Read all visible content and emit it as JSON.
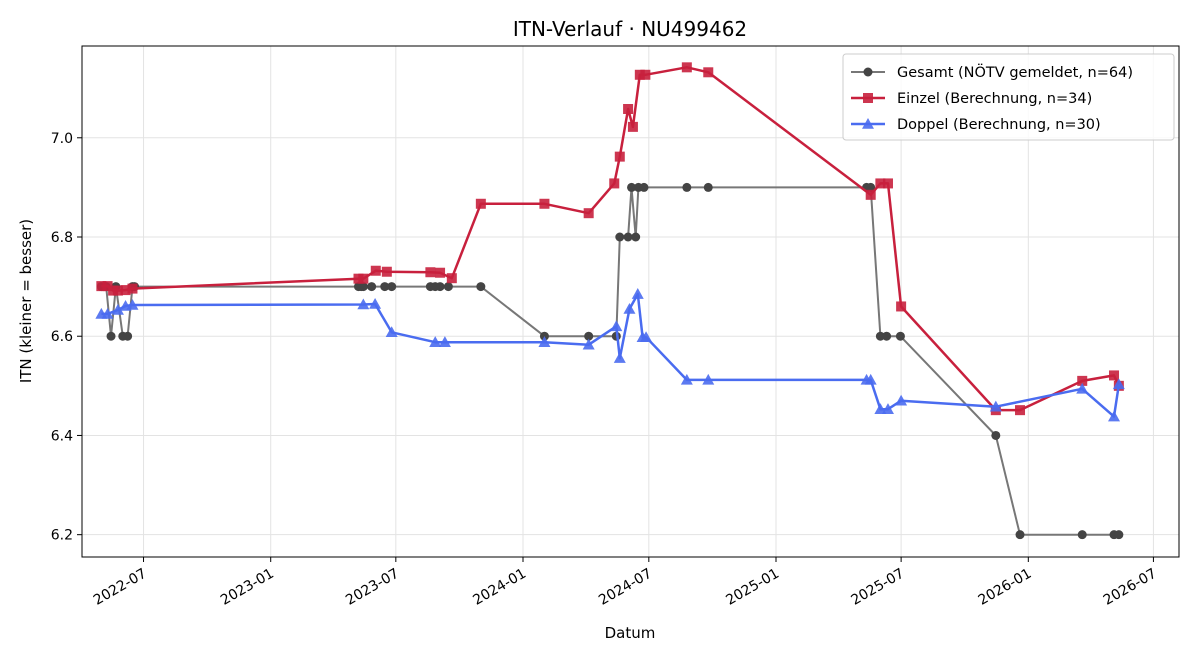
{
  "chart_data": {
    "type": "line",
    "title": "ITN-Verlauf · NU499462",
    "xlabel": "Datum",
    "ylabel": "ITN  (kleiner = besser)",
    "x_ticks": [
      "2022-07",
      "2023-01",
      "2023-07",
      "2024-01",
      "2024-07",
      "2025-01",
      "2025-07",
      "2026-01",
      "2026-07"
    ],
    "y_ticks": [
      6.2,
      6.4,
      6.6,
      6.8,
      7.0
    ],
    "xlim": [
      "2022-04-03",
      "2026-08-07"
    ],
    "ylim": [
      6.155,
      7.185
    ],
    "grid": true,
    "legend_position": "top-right",
    "series": [
      {
        "name": "Gesamt (NÖTV gemeldet, n=64)",
        "color": "#595959",
        "marker": "circle",
        "points": [
          [
            "2022-05-01",
            6.7
          ],
          [
            "2022-05-08",
            6.7
          ],
          [
            "2022-05-15",
            6.6
          ],
          [
            "2022-05-22",
            6.7
          ],
          [
            "2022-06-01",
            6.6
          ],
          [
            "2022-06-08",
            6.6
          ],
          [
            "2022-06-15",
            6.7
          ],
          [
            "2022-06-18",
            6.7
          ],
          [
            "2023-05-08",
            6.7
          ],
          [
            "2023-05-12",
            6.7
          ],
          [
            "2023-05-15",
            6.7
          ],
          [
            "2023-05-27",
            6.7
          ],
          [
            "2023-06-15",
            6.7
          ],
          [
            "2023-06-25",
            6.7
          ],
          [
            "2023-08-20",
            6.7
          ],
          [
            "2023-08-27",
            6.7
          ],
          [
            "2023-09-03",
            6.7
          ],
          [
            "2023-09-15",
            6.7
          ],
          [
            "2023-11-01",
            6.7
          ],
          [
            "2024-02-01",
            6.6
          ],
          [
            "2024-04-05",
            6.6
          ],
          [
            "2024-05-15",
            6.6
          ],
          [
            "2024-05-20",
            6.8
          ],
          [
            "2024-06-01",
            6.8
          ],
          [
            "2024-06-06",
            6.9
          ],
          [
            "2024-06-12",
            6.8
          ],
          [
            "2024-06-16",
            6.9
          ],
          [
            "2024-06-24",
            6.9
          ],
          [
            "2024-08-25",
            6.9
          ],
          [
            "2024-09-25",
            6.9
          ],
          [
            "2025-05-12",
            6.9
          ],
          [
            "2025-05-18",
            6.9
          ],
          [
            "2025-06-01",
            6.6
          ],
          [
            "2025-06-10",
            6.6
          ],
          [
            "2025-06-30",
            6.6
          ],
          [
            "2025-11-15",
            6.4
          ],
          [
            "2025-12-20",
            6.2
          ],
          [
            "2026-03-20",
            6.2
          ],
          [
            "2026-05-05",
            6.2
          ],
          [
            "2026-05-12",
            6.2
          ]
        ]
      },
      {
        "name": "Einzel (Berechnung, n=34)",
        "color": "#c8203d",
        "marker": "square",
        "points": [
          [
            "2022-05-01",
            6.701
          ],
          [
            "2022-05-10",
            6.701
          ],
          [
            "2022-05-18",
            6.692
          ],
          [
            "2022-05-25",
            6.692
          ],
          [
            "2022-06-05",
            6.693
          ],
          [
            "2022-06-15",
            6.696
          ],
          [
            "2023-05-08",
            6.716
          ],
          [
            "2023-05-15",
            6.716
          ],
          [
            "2023-06-02",
            6.732
          ],
          [
            "2023-06-18",
            6.73
          ],
          [
            "2023-08-20",
            6.729
          ],
          [
            "2023-09-03",
            6.728
          ],
          [
            "2023-09-20",
            6.717
          ],
          [
            "2023-11-01",
            6.867
          ],
          [
            "2024-02-01",
            6.867
          ],
          [
            "2024-04-05",
            6.848
          ],
          [
            "2024-05-12",
            6.908
          ],
          [
            "2024-05-20",
            6.962
          ],
          [
            "2024-06-01",
            7.058
          ],
          [
            "2024-06-08",
            7.022
          ],
          [
            "2024-06-18",
            7.127
          ],
          [
            "2024-06-26",
            7.127
          ],
          [
            "2024-08-25",
            7.142
          ],
          [
            "2024-09-25",
            7.132
          ],
          [
            "2025-05-18",
            6.885
          ],
          [
            "2025-06-01",
            6.908
          ],
          [
            "2025-06-12",
            6.908
          ],
          [
            "2025-07-01",
            6.66
          ],
          [
            "2025-11-15",
            6.451
          ],
          [
            "2025-12-20",
            6.451
          ],
          [
            "2026-03-20",
            6.51
          ],
          [
            "2026-05-05",
            6.521
          ],
          [
            "2026-05-12",
            6.5
          ]
        ]
      },
      {
        "name": "Doppel (Berechnung, n=30)",
        "color": "#4a6cf0",
        "marker": "triangle",
        "points": [
          [
            "2022-05-01",
            6.645
          ],
          [
            "2022-05-10",
            6.645
          ],
          [
            "2022-05-25",
            6.653
          ],
          [
            "2022-06-05",
            6.661
          ],
          [
            "2022-06-15",
            6.663
          ],
          [
            "2023-05-15",
            6.664
          ],
          [
            "2023-06-01",
            6.665
          ],
          [
            "2023-06-25",
            6.608
          ],
          [
            "2023-08-27",
            6.588
          ],
          [
            "2023-09-10",
            6.588
          ],
          [
            "2024-02-01",
            6.588
          ],
          [
            "2024-04-05",
            6.583
          ],
          [
            "2024-05-15",
            6.62
          ],
          [
            "2024-05-20",
            6.556
          ],
          [
            "2024-06-03",
            6.655
          ],
          [
            "2024-06-15",
            6.685
          ],
          [
            "2024-06-22",
            6.598
          ],
          [
            "2024-06-27",
            6.598
          ],
          [
            "2024-08-25",
            6.512
          ],
          [
            "2024-09-25",
            6.512
          ],
          [
            "2025-05-12",
            6.512
          ],
          [
            "2025-05-18",
            6.512
          ],
          [
            "2025-06-01",
            6.453
          ],
          [
            "2025-06-12",
            6.453
          ],
          [
            "2025-07-01",
            6.47
          ],
          [
            "2025-11-15",
            6.458
          ],
          [
            "2026-03-20",
            6.494
          ],
          [
            "2026-05-05",
            6.438
          ],
          [
            "2026-05-12",
            6.503
          ]
        ]
      }
    ]
  }
}
